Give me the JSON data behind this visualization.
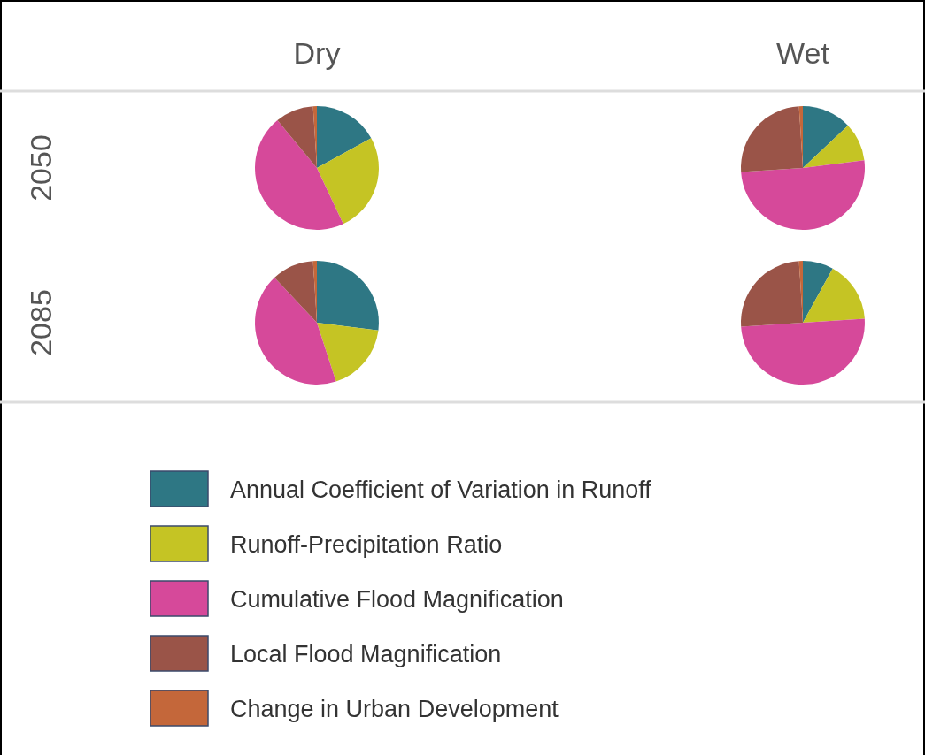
{
  "chart_data": [
    {
      "type": "pie",
      "title": "Dry",
      "ylabel": "2050",
      "legend": "bottom",
      "categories": [
        "Annual Coefficient of Variation in Runoff",
        "Runoff-Precipitation Ratio",
        "Cumulative Flood Magnification",
        "Local Flood Magnification",
        "Change in Urban Development"
      ],
      "values": [
        17,
        26,
        46,
        10,
        1
      ],
      "colors": [
        "#2e7784",
        "#c5c424",
        "#d6499a",
        "#9a5448",
        "#c4673a"
      ]
    },
    {
      "type": "pie",
      "title": "Wet",
      "categories": [
        null,
        null,
        null,
        null,
        null
      ],
      "values": [
        13,
        10,
        51,
        25,
        1
      ],
      "colors": [
        "#2e7784",
        "#c5c424",
        "#d6499a",
        "#9a5448",
        "#c4673a"
      ]
    },
    {
      "type": "pie",
      "ylabel": "2085",
      "categories": [
        null,
        null,
        null,
        null,
        null
      ],
      "values": [
        27,
        18,
        43,
        11,
        1
      ],
      "colors": [
        "#2e7784",
        "#c5c424",
        "#d6499a",
        "#9a5448",
        "#c4673a"
      ]
    },
    {
      "type": "pie",
      "categories": [
        null,
        null,
        null,
        null,
        null
      ],
      "values": [
        8,
        16,
        50,
        25,
        1
      ],
      "colors": [
        "#2e7784",
        "#c5c424",
        "#d6499a",
        "#9a5448",
        "#c4673a"
      ]
    }
  ]
}
